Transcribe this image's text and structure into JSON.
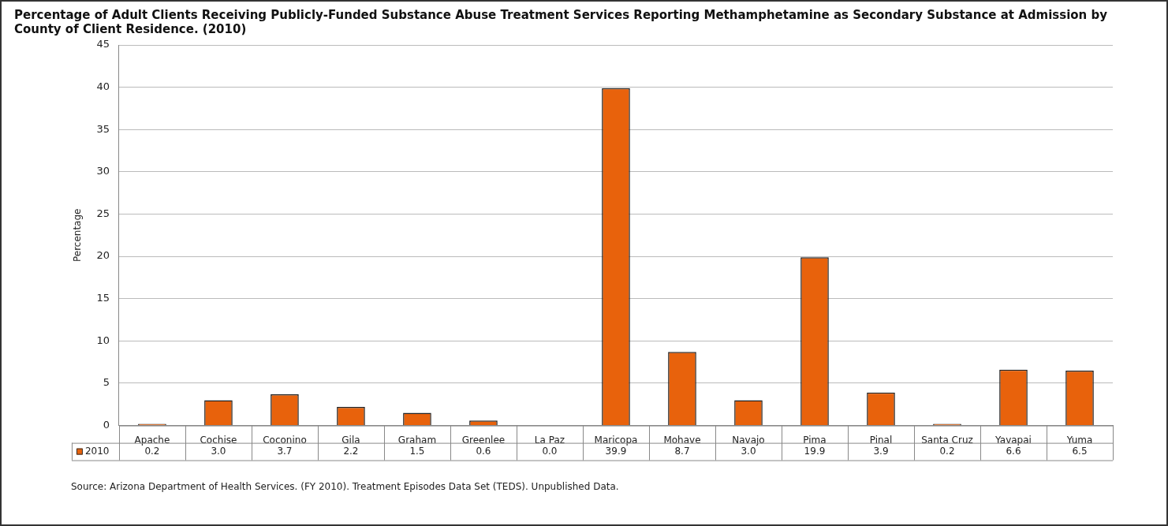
{
  "chart_data": {
    "type": "bar",
    "title": "Percentage of Adult Clients Receiving Publicly-Funded Substance Abuse Treatment Services Reporting Methamphetamine as Secondary Substance at Admission by County of Client Residence. (2010)",
    "ylabel": "Percentage",
    "categories": [
      "Apache",
      "Cochise",
      "Coconino",
      "Gila",
      "Graham",
      "Greenlee",
      "La Paz",
      "Maricopa",
      "Mohave",
      "Navajo",
      "Pima",
      "Pinal",
      "Santa Cruz",
      "Yavapai",
      "Yuma"
    ],
    "series": [
      {
        "name": "2010",
        "color": "#e8620c",
        "values": [
          0.2,
          3.0,
          3.7,
          2.2,
          1.5,
          0.6,
          0.0,
          39.9,
          8.7,
          3.0,
          19.9,
          3.9,
          0.2,
          6.6,
          6.5
        ],
        "value_labels": [
          "0.2",
          "3.0",
          "3.7",
          "2.2",
          "1.5",
          "0.6",
          "0.0",
          "39.9",
          "8.7",
          "3.0",
          "19.9",
          "3.9",
          "0.2",
          "6.6",
          "6.5"
        ]
      }
    ],
    "ylim": [
      0,
      45
    ],
    "yticks": [
      0,
      5,
      10,
      15,
      20,
      25,
      30,
      35,
      40,
      45
    ],
    "grid": "y",
    "legend": "bottom",
    "annotations": [
      "Source: Arizona Department of Health Services. (FY 2010). Treatment Episodes Data Set (TEDS). Unpublished Data."
    ]
  }
}
